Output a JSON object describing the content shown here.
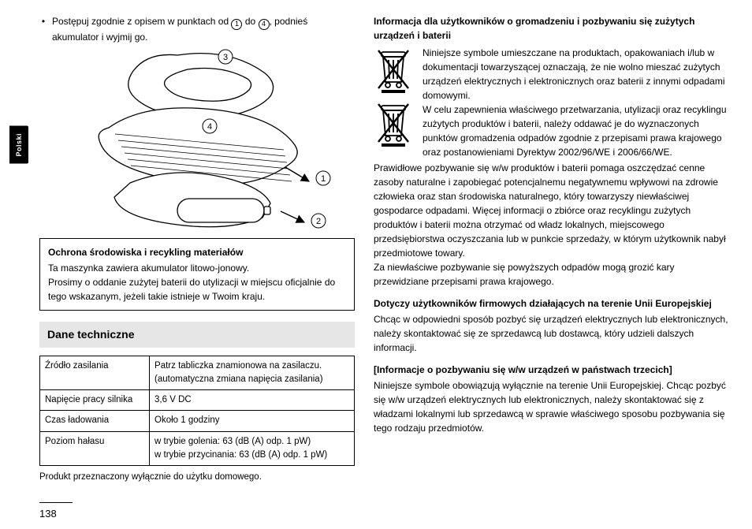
{
  "tab_label": "Polski",
  "bullet": {
    "prefix": "Postępuj zgodnie z opisem w punktach od ",
    "n1": "1",
    "mid": " do ",
    "n4": "4",
    "suffix": ", podnieś akumulator i wyjmij go."
  },
  "callouts": {
    "c1": "1",
    "c2": "2",
    "c3": "3",
    "c4": "4"
  },
  "notice": {
    "title": "Ochrona środowiska i recykling materiałów",
    "line1": "Ta maszynka zawiera akumulator litowo-jonowy.",
    "line2": "Prosimy o oddanie zużytej baterii do utylizacji w miejscu oficjalnie do tego wskazanym, jeżeli takie istnieje w Twoim kraju."
  },
  "spec_header": "Dane techniczne",
  "spec": {
    "rows": [
      {
        "label": "Źródło zasilania",
        "value": "Patrz tabliczka znamionowa na zasilaczu.\n(automatyczna zmiana napięcia zasilania)"
      },
      {
        "label": "Napięcie pracy silnika",
        "value": "3,6 V DC"
      },
      {
        "label": "Czas ładowania",
        "value": "Około 1 godziny"
      },
      {
        "label": "Poziom hałasu",
        "value": "w trybie golenia: 63 (dB (A) odp. 1 pW)\nw trybie przycinania: 63 (dB (A) odp. 1 pW)"
      }
    ],
    "caption": "Produkt przeznaczony wyłącznie do użytku domowego."
  },
  "right": {
    "title": "Informacja dla użytkowników o gromadzeniu i pozbywaniu się zużytych urządzeń i baterii",
    "weee_text": "Niniejsze symbole umieszczane na produktach, opakowaniach i/lub w dokumentacji towarzyszącej oznaczają, że nie wolno mieszać zużytych urządzeń elektrycznych i elektronicznych oraz baterii z innymi odpadami domowymi.\nW celu zapewnienia właściwego przetwarzania, utylizacji oraz recyklingu zużytych produktów i baterii, należy oddawać je do wyznaczonych punktów gromadzenia odpadów zgodnie z przepisami prawa krajowego oraz postanowieniami Dyrektyw 2002/96/WE i 2006/66/WE.",
    "para1": "Prawidłowe pozbywanie się w/w produktów i baterii pomaga oszczędzać cenne zasoby naturalne i zapobiegać potencjalnemu negatywnemu wpływowi na zdrowie człowieka oraz stan środowiska naturalnego, który towarzyszy niewłaściwej gospodarce odpadami. Więcej informacji o zbiórce oraz recyklingu zużytych produktów i baterii można otrzymać od władz lokalnych, miejscowego przedsiębiorstwa oczyszczania lub w punkcie sprzedaży, w którym użytkownik nabył przedmiotowe towary.\nZa niewłaściwe pozbywanie się powyższych odpadów mogą grozić kary przewidziane przepisami prawa krajowego.",
    "sub1_title": "Dotyczy użytkowników firmowych działających na terenie Unii Europejskiej",
    "sub1_text": "Chcąc w odpowiedni sposób pozbyć się urządzeń elektrycznych lub elektronicznych, należy skontaktować się ze sprzedawcą lub dostawcą, który udzieli dalszych informacji.",
    "sub2_title": "[Informacje o pozbywaniu się w/w urządzeń w państwach trzecich]",
    "sub2_text": "Niniejsze symbole obowiązują wyłącznie na terenie Unii Europejskiej. Chcąc pozbyć się w/w urządzeń elektrycznych lub elektronicznych, należy skontaktować się z władzami lokalnymi lub sprzedawcą w sprawie właściwego sposobu pozbywania się tego rodzaju przedmiotów."
  },
  "page_number": "138"
}
